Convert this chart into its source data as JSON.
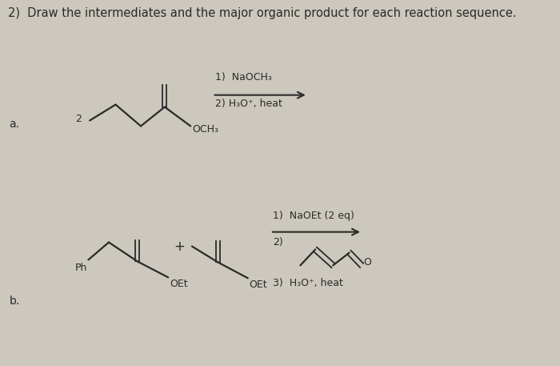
{
  "title": "2)  Draw the intermediates and the major organic product for each reaction sequence.",
  "bg_color": "#cdc8be",
  "text_color": "#2a2a2a",
  "title_fontsize": 10.5,
  "label_a": "a.",
  "label_b": "b.",
  "reaction_a_step1": "1)  NaOCH₃",
  "reaction_a_step2": "2) H₃O⁺, heat",
  "reaction_b_step1": "1)  NaOEt (2 eq)",
  "reaction_b_step2": "2)",
  "reaction_b_step3": "3)  H₃O⁺, heat"
}
